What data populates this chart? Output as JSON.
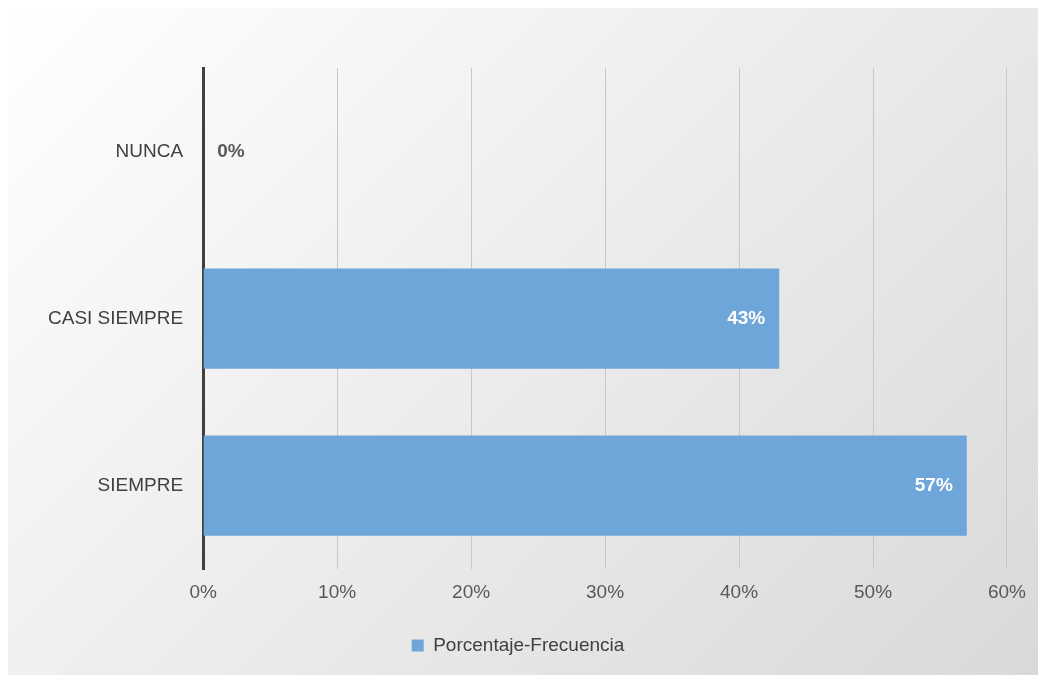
{
  "chart_data": {
    "type": "bar",
    "orientation": "horizontal",
    "categories": [
      "NUNCA",
      "CASI SIEMPRE",
      "SIEMPRE"
    ],
    "series": [
      {
        "name": "Porcentaje-Frecuencia",
        "color": "#6fa6d9",
        "values": [
          0,
          43,
          57
        ],
        "value_labels": [
          "0%",
          "43%",
          "57%"
        ]
      }
    ],
    "xlim": [
      0,
      60
    ],
    "xticks": [
      {
        "value": 0,
        "label": "0%"
      },
      {
        "value": 10,
        "label": "10%"
      },
      {
        "value": 20,
        "label": "20%"
      },
      {
        "value": 30,
        "label": "30%"
      },
      {
        "value": 40,
        "label": "40%"
      },
      {
        "value": 50,
        "label": "50%"
      },
      {
        "value": 60,
        "label": "60%"
      }
    ],
    "grid": "x",
    "legend": "bottom"
  }
}
